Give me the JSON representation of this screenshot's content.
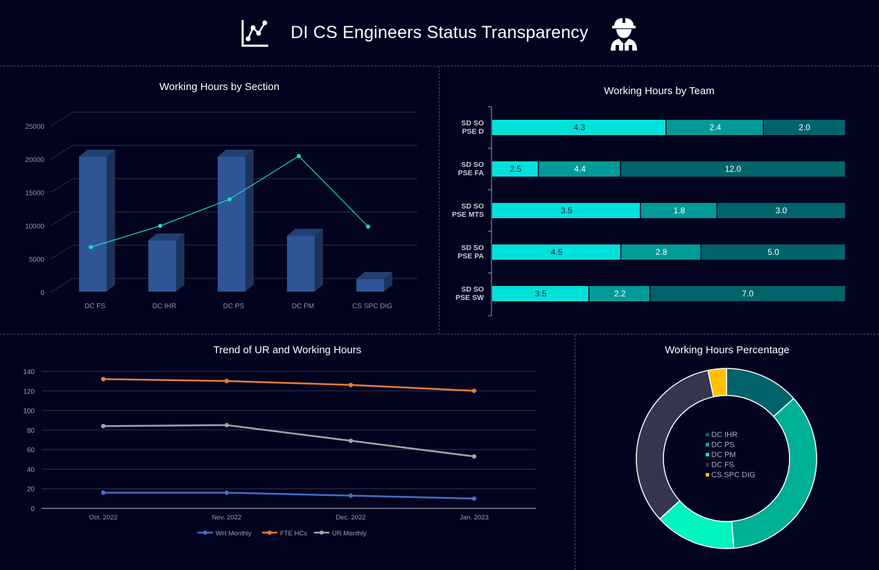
{
  "header": {
    "title": "DI CS Engineers Status Transparency",
    "left_icon": "line-chart-icon",
    "right_icon": "engineer-icon"
  },
  "colors": {
    "background": "#02031f",
    "bar3d": "#2e5597",
    "line_cyan": "#19e0c0",
    "team_seg1": "#00e1dc",
    "team_seg2": "#009a98",
    "team_seg3": "#00636b",
    "wh_monthly": "#4472c4",
    "fte_hcs": "#ed7d31",
    "ur_monthly": "#a5a5a5",
    "donut": [
      "#00636b",
      "#00b096",
      "#00f5c0",
      "#35354f",
      "#ffc000"
    ]
  },
  "panels": {
    "section": {
      "title": "Working Hours by Section"
    },
    "team": {
      "title": "Working Hours by Team"
    },
    "trend": {
      "title": "Trend of UR and Working Hours"
    },
    "percentage": {
      "title": "Working Hours Percentage"
    }
  },
  "chart_data": [
    {
      "id": "section",
      "type": "bar",
      "title": "Working Hours by Section",
      "categories": [
        "DC FS",
        "DC IHR",
        "DC PS",
        "DC PM",
        "CS SPC DIG"
      ],
      "series": [
        {
          "type": "bar",
          "values": [
            20300,
            7700,
            20300,
            8400,
            1900
          ]
        },
        {
          "type": "line",
          "values": [
            7200,
            10400,
            14400,
            20900,
            10300
          ]
        }
      ],
      "yticks": [
        "0",
        "5000",
        "10000",
        "15000",
        "20000",
        "25000"
      ],
      "ylim": [
        0,
        25000
      ],
      "grid": true
    },
    {
      "id": "team",
      "type": "bar",
      "orientation": "horizontal",
      "stacked": true,
      "title": "Working Hours by Team",
      "categories": [
        "SD SO PSE D",
        "SD SO PSE FA",
        "SD SO PSE MTS",
        "SD SO PSE PA",
        "SD SO PSE SW"
      ],
      "category_lines": [
        [
          "SD SO",
          "PSE D"
        ],
        [
          "SD SO",
          "PSE FA"
        ],
        [
          "SD SO",
          "PSE MTS"
        ],
        [
          "SD SO",
          "PSE PA"
        ],
        [
          "SD SO",
          "PSE SW"
        ]
      ],
      "series": [
        {
          "values": [
            4.3,
            2.5,
            3.5,
            4.5,
            3.5
          ],
          "labels": [
            "4.3",
            "2.5",
            "3.5",
            "4.5",
            "3.5"
          ]
        },
        {
          "values": [
            2.4,
            4.4,
            1.8,
            2.8,
            2.2
          ],
          "labels": [
            "2.4",
            "4.4",
            "1.8",
            "2.8",
            "2.2"
          ]
        },
        {
          "values": [
            2.0,
            12.0,
            3.0,
            5.0,
            7.0
          ],
          "labels": [
            "2.0",
            "12.0",
            "3.0",
            "5.0",
            "7.0"
          ]
        }
      ]
    },
    {
      "id": "trend",
      "type": "line",
      "title": "Trend of UR and Working Hours",
      "categories": [
        "Oct. 2022",
        "Nov. 2022",
        "Dec. 2022",
        "Jan. 2023"
      ],
      "series": [
        {
          "name": "WH  Monthly",
          "values": [
            16,
            16,
            13,
            10
          ]
        },
        {
          "name": "FTE HCs",
          "values": [
            132,
            130,
            126,
            120
          ]
        },
        {
          "name": "UR  Monthly",
          "values": [
            84,
            85,
            69,
            53
          ]
        }
      ],
      "yticks": [
        "0",
        "20",
        "40",
        "60",
        "80",
        "100",
        "120",
        "140"
      ],
      "ylim": [
        0,
        140
      ],
      "legend": "bottom",
      "grid": true
    },
    {
      "id": "percentage",
      "type": "pie",
      "variant": "donut",
      "title": "Working Hours Percentage",
      "labels": [
        "DC IHR",
        "DC PS",
        "DC PM",
        "DC FS",
        "CS SPC DIG"
      ],
      "values": [
        13.4,
        35.3,
        14.6,
        33.4,
        3.3
      ],
      "legend": "center"
    }
  ]
}
